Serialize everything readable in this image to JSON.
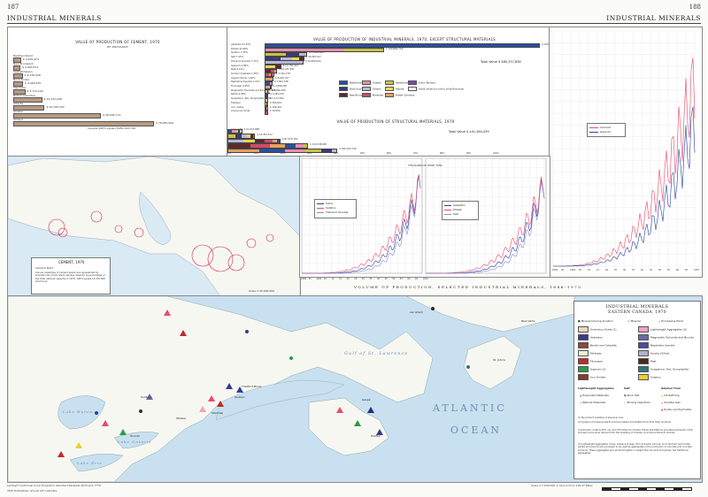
{
  "header": {
    "page_left": "187",
    "page_right": "188",
    "title_left": "INDUSTRIAL MINERALS",
    "title_right": "INDUSTRIAL MINERALS"
  },
  "cement_chart": {
    "title": "VALUE OF PRODUCTION OF CEMENT, 1970",
    "subtitle": "BY PROVINCE",
    "note": "Canada 100% equals $180,193,749",
    "rows": [
      {
        "label": "Newfoundland",
        "value": "$ 3,405,973",
        "pct": 1.9
      },
      {
        "label": "New Brunswick",
        "value": "$ 3,090,573",
        "pct": 1.7
      },
      {
        "label": "Saskatchewan",
        "value": "$ 4,276,928",
        "pct": 2.4
      },
      {
        "label": "Nova Scotia",
        "value": "$ 4,499,935",
        "pct": 2.5
      },
      {
        "label": "Manitoba",
        "value": "$ 5,772,240",
        "pct": 3.2
      },
      {
        "label": "British Columbia",
        "value": "$ 15,312,048",
        "pct": 8.5
      },
      {
        "label": "Alberta",
        "value": "$ 16,795,330",
        "pct": 9.3
      },
      {
        "label": "Quebec",
        "value": "$ 48,592,174",
        "pct": 27.0
      },
      {
        "label": "Ontario",
        "value": "$ 78,481,099",
        "pct": 43.6
      }
    ]
  },
  "industrial_chart": {
    "title": "VALUE OF PRODUCTION OF INDUSTRIAL MINERALS, 1970, EXCEPT STRUCTURAL MATERIALS",
    "total": "Total Value $ 480,337,838",
    "rows": [
      {
        "label": "Asbestos 53.35%",
        "value": "$ 256,148,000",
        "pct": 53.35
      },
      {
        "label": "Potash 22.96%",
        "value": "$ 109,884,743",
        "pct": 22.96
      },
      {
        "label": "Sulphur 7.95%",
        "value": "$ 37,900,883",
        "pct": 7.95
      },
      {
        "label": "Salt 7.35%",
        "value": "$ 35,087,017",
        "pct": 7.35
      },
      {
        "label": "Titanium Dioxide 7.27%",
        "value": "$ 34,820,000",
        "pct": 7.27
      },
      {
        "label": "Gypsum 2.86%",
        "value": "$ 13,730,413",
        "pct": 2.86
      },
      {
        "label": "Peat 2.13%",
        "value": "$ 10,187,631",
        "pct": 2.13
      },
      {
        "label": "Sodium Sulphate 1.58%",
        "value": "$ 7,561,778",
        "pct": 1.58
      },
      {
        "label": "Quartz (Silica) 1.40%",
        "value": "$ 6,695,707",
        "pct": 1.4
      },
      {
        "label": "Nepheline Syenite 1.21%",
        "value": "$ 5,801,328",
        "pct": 1.21
      },
      {
        "label": "Fluorspar 0.95%",
        "value": "$ 4,569,345",
        "pct": 0.95
      },
      {
        "label": "Magnesitic Dolomite and Brucite 0.69%",
        "value": "$ 3,300,000",
        "pct": 0.69
      },
      {
        "label": "Barite 0.38%",
        "value": "$ 1,882,155",
        "pct": 0.38
      },
      {
        "label": "Soapstone, Talc, Pyrophyllite 0.24%",
        "value": "$ 1,131,594",
        "pct": 0.24
      },
      {
        "label": "Feldspar",
        "value": "$ 390,841",
        "pct": 0.08
      },
      {
        "label": "Iron oxides",
        "value": "$ 156,441",
        "pct": 0.03
      },
      {
        "label": "Arsenious Oxide",
        "value": "$ 16,000",
        "pct": 0.01
      }
    ],
    "legend": [
      {
        "label": "Newfoundland",
        "color": "#2a4fa8"
      },
      {
        "label": "Quebec",
        "color": "#e88fb0"
      },
      {
        "label": "Saskatchewan",
        "color": "#c9c245"
      },
      {
        "label": "Yukon Territory",
        "color": "#7a4fa0"
      },
      {
        "label": "Nova Scotia",
        "color": "#3a3a7a"
      },
      {
        "label": "Ontario",
        "color": "#b8b8d8"
      },
      {
        "label": "Alberta",
        "color": "#e8d65a"
      },
      {
        "label": "Small values too low to show Provinces",
        "color": "#ffffff"
      },
      {
        "label": "New Brunswick",
        "color": "#5a2a2a"
      },
      {
        "label": "Manitoba",
        "color": "#d04a6a"
      },
      {
        "label": "British Columbia",
        "color": "#e8a060"
      }
    ]
  },
  "structural_chart": {
    "title": "VALUE OF PRODUCTION OF STRUCTURAL MATERIALS, 1970",
    "total": "Total Value $ 441,460,439",
    "rows": [
      {
        "label": "Lime 4.9%",
        "value": "$ 21,674,888",
        "pct": 4.9
      },
      {
        "label": "Clay Products 9.8%",
        "value": "$ 43,381,572",
        "pct": 9.8
      },
      {
        "label": "Stone 19.3%",
        "value": "$ 87,215,765",
        "pct": 19.3
      },
      {
        "label": "Sand and Gravel 29.7%",
        "value": "$ 132,538,995",
        "pct": 29.7
      },
      {
        "label": "Cement 40.8%",
        "value": "$ 180,193,749",
        "pct": 40.8
      }
    ],
    "xaxis": [
      "0%",
      "10%",
      "20%",
      "30%",
      "40%",
      "50%",
      "60%",
      "70%",
      "80%",
      "90%",
      "100%"
    ]
  },
  "timeseries": {
    "title": "VOLUME OF PRODUCTION, SELECTED INDUSTRIAL MINERALS, 1886-1970",
    "yunit": "THOUSANDS OF SHORT TONS",
    "years": [
      "1890",
      "95",
      "1900",
      "05",
      "10",
      "15",
      "20",
      "25",
      "30",
      "35",
      "40",
      "45",
      "50",
      "55",
      "60",
      "65",
      "1970"
    ],
    "panel1_legend": [
      {
        "label": "Silica",
        "color": "#2a3fa0"
      },
      {
        "label": "Sulphur",
        "color": "#e84a6a"
      },
      {
        "label": "Titanium Dioxide",
        "color": "#8a8ad0"
      }
    ],
    "panel2_legend": [
      {
        "label": "Asbestos",
        "color": "#2a3fa0"
      },
      {
        "label": "Potash",
        "color": "#e84a6a"
      },
      {
        "label": "Salt",
        "color": "#8a8ad0"
      }
    ],
    "panel3_legend": [
      {
        "label": "Cement",
        "color": "#e84a6a"
      },
      {
        "label": "Gypsum",
        "color": "#2a3fa0"
      }
    ]
  },
  "cement_map": {
    "title": "CEMENT, 1970",
    "legend_item": "Cement Plant",
    "note": "Annual capacities of cement plants are represented by proportional circles which express capacity as percentage of the total national capacity in 1970. 100% equals 14,370,000 short tons.",
    "scale": "Scale 1:30,000,000"
  },
  "main_map": {
    "water_labels": [
      "ATLANTIC",
      "OCEAN",
      "Gulf of St. Lawrence",
      "Lake Huron",
      "Lake Ontario",
      "Lake Erie"
    ],
    "places": [
      "Lac Allard",
      "Baie Verte",
      "Schefferville",
      "Havre Saint-Pierre",
      "Gaspé",
      "Thetford Mines",
      "Asbestos",
      "Sept-Îles",
      "Matane",
      "Pugwash",
      "Windsor",
      "Amherst",
      "Saint John",
      "Sussex",
      "Halifax",
      "Sydney",
      "Montréal",
      "Québec",
      "Ottawa",
      "Kingston",
      "Toronto",
      "Hamilton",
      "Sudbury",
      "Sarnia",
      "Windsor",
      "London",
      "St. John's",
      "Corner Brook",
      "Lac Saint-Jean"
    ]
  },
  "map_legend": {
    "title": "INDUSTRIAL MINERALS",
    "subtitle": "EASTERN CANADA, 1970",
    "symbols": [
      "Mine/producing location",
      "Mineral",
      "Processing Plant"
    ],
    "col1": [
      {
        "label": "Arsenious Oxide (1)",
        "color": "#f2d4c4"
      },
      {
        "label": "Asbestos",
        "color": "#3a3a8a"
      },
      {
        "label": "Barite and Celestite",
        "color": "#8a4a3a"
      },
      {
        "label": "Feldspar",
        "color": "#f0f0d0"
      },
      {
        "label": "Fluorspar",
        "color": "#c02a2a"
      },
      {
        "label": "Gypsum (2)",
        "color": "#2a9a4a"
      },
      {
        "label": "Iron Oxides",
        "color": "#8a3a2a"
      }
    ],
    "col2": [
      {
        "label": "Lightweight Aggregates (3)",
        "color": "#f2a0c0"
      },
      {
        "label": "Magnesitic Dolomite and Brucite",
        "color": "#6a6aa0"
      },
      {
        "label": "Nepheline Syenite",
        "color": "#4a4aa0"
      },
      {
        "label": "Quartz (Silica)",
        "color": "#b0b0d0"
      },
      {
        "label": "Peat",
        "color": "#4a2a1a"
      },
      {
        "label": "Soapstone, Talc, Pyrophyllite",
        "color": "#2a7a7a"
      },
      {
        "label": "Sulphur",
        "color": "#e8d030"
      }
    ],
    "row_labels": [
      "Lightweight Aggregates",
      "Salt",
      "Sulphur from"
    ],
    "salt_items": [
      "Rock Salt",
      "Brining Operation"
    ],
    "sulphur_items": [
      "Oil Refining",
      "Smelter Gas",
      "Pyrite and Pyrrhotite"
    ],
    "lwa_items": [
      "Expanded Materials",
      "Natural Materials"
    ],
    "footnotes": [
      "(1) By-product smelting of arsenical ores.",
      "(2) Gypsum processing plants produce plaster and wallboard as final main products.",
      "(3) Ilmenite contains 45% iron and 55% titanium dioxide. Plants identified as processing ilmenite in this process (home shop derived from the smelting of ilmenite, to produce titanium dioxide.",
      "(4) Lightweight aggregates. Clays, shales and slag, from domestic sources, and imported vermiculite, perlite and pumice are processed to be used as aggregates in the production of concrete and concrete products. These aggregates give products lighter in weight than do sand and gravel, the traditional aggregates."
    ]
  },
  "footer": {
    "left1": "Lambert Conformal Conic Projection Standard Parallels 49°N and 77°N",
    "left2": "THE NATIONAL ATLAS OF CANADA",
    "scale": "Scale 1:7,500,000 or One inch to 118.37 Miles"
  }
}
